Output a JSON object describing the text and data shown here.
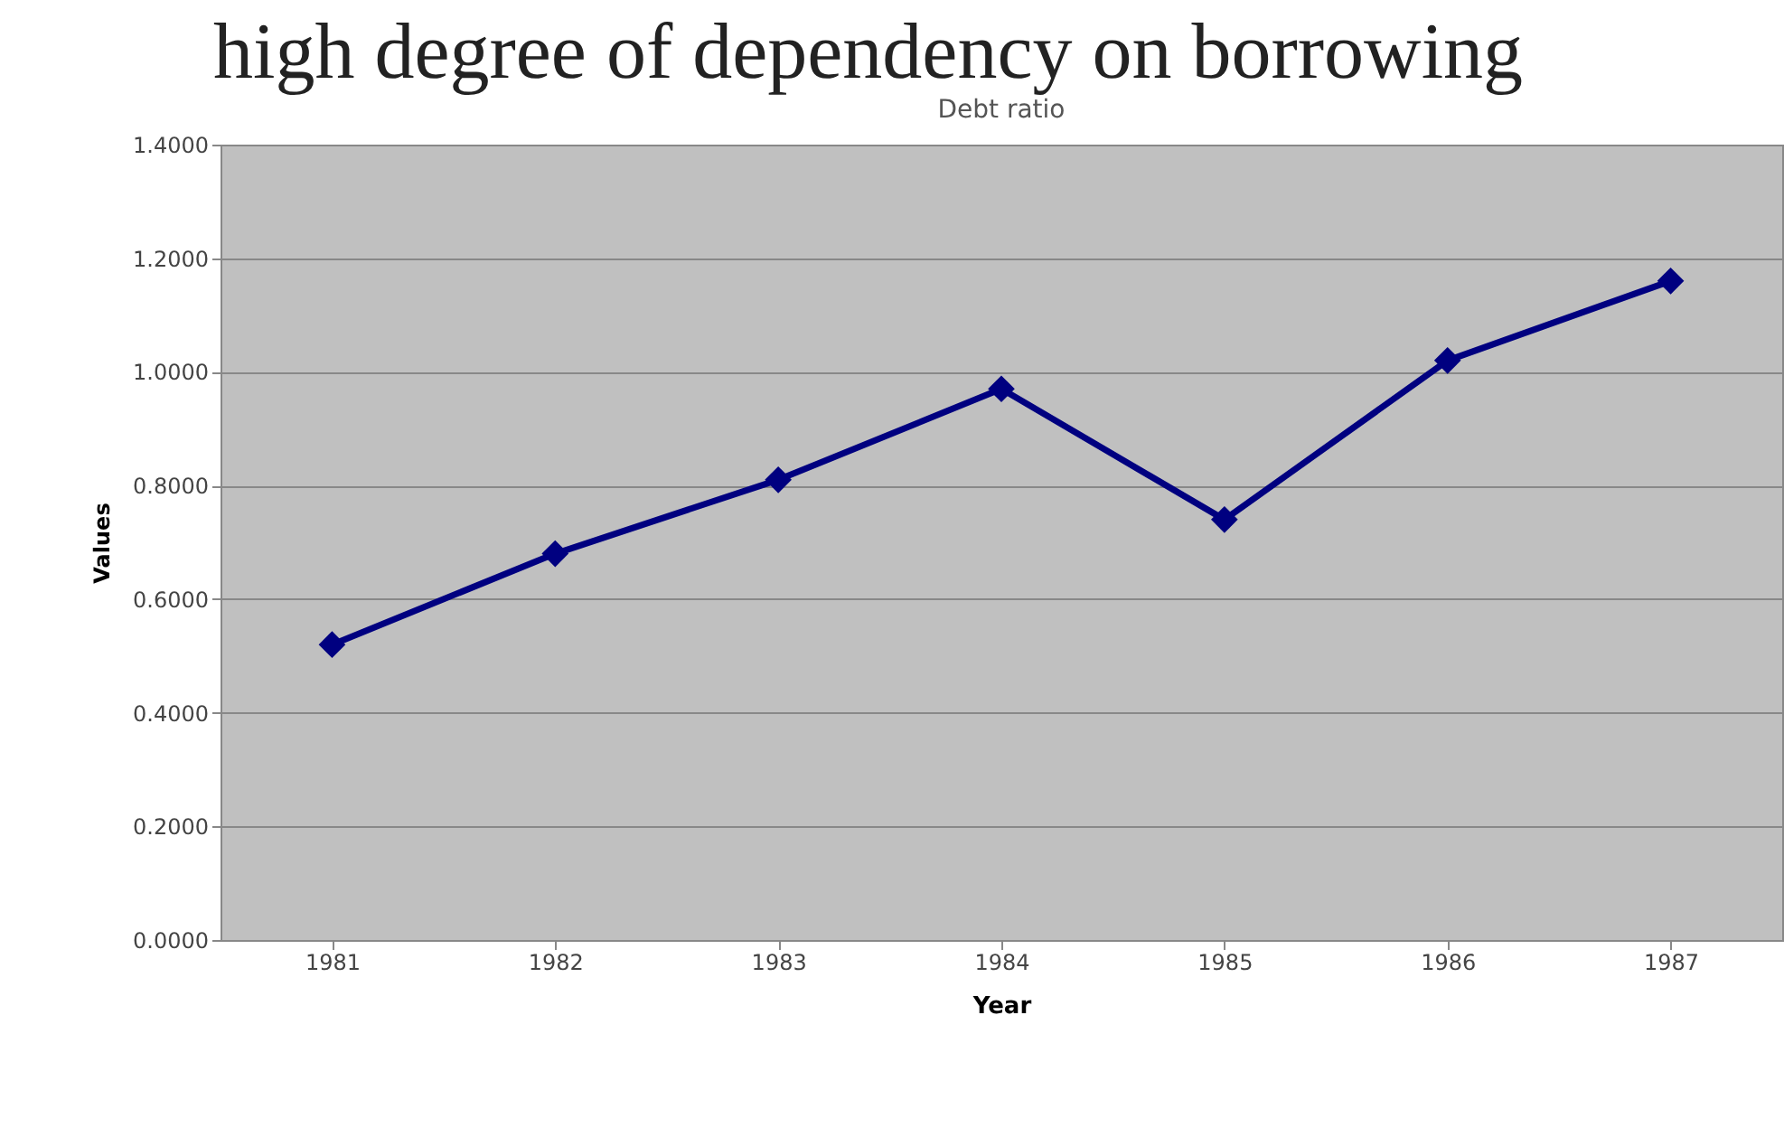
{
  "chart_data": {
    "type": "line",
    "title": "high degree of dependency on borrowing",
    "subtitle": "Debt ratio",
    "xlabel": "Year",
    "ylabel": "Values",
    "categories": [
      "1981",
      "1982",
      "1983",
      "1984",
      "1985",
      "1986",
      "1987"
    ],
    "series": [
      {
        "color": "#000080",
        "values": [
          0.52,
          0.68,
          0.81,
          0.97,
          0.74,
          1.02,
          1.16
        ]
      }
    ],
    "ylim": [
      0,
      1.4
    ],
    "yticks": [
      {
        "value": 0,
        "label": "0.0000"
      },
      {
        "value": 0.2,
        "label": "0.2000"
      },
      {
        "value": 0.4,
        "label": "0.4000"
      },
      {
        "value": 0.6,
        "label": "0.6000"
      },
      {
        "value": 0.8,
        "label": "0.8000"
      },
      {
        "value": 1,
        "label": "1.0000"
      },
      {
        "value": 1.2,
        "label": "1.2000"
      },
      {
        "value": 1.4,
        "label": "1.4000"
      }
    ],
    "grid": "y",
    "marker": "diamond",
    "line_style": "solid"
  }
}
